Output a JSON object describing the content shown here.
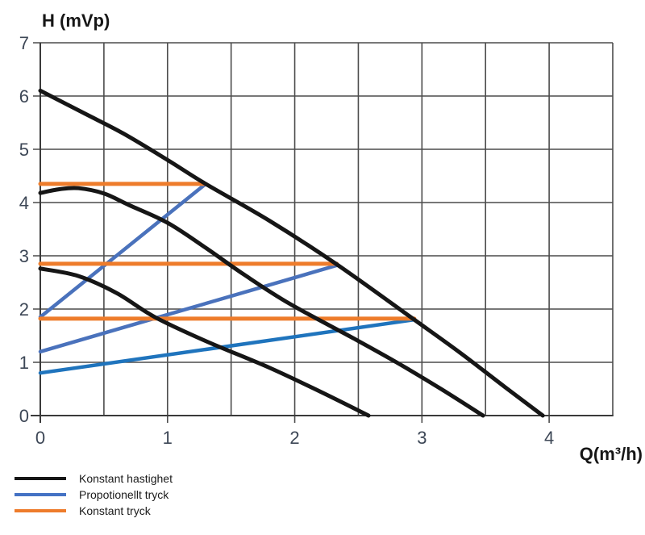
{
  "chart": {
    "y_axis_title": "H (mVp)",
    "x_axis_title": "Q(m³/h)"
  },
  "legend": {
    "items": [
      {
        "label": "Konstant hastighet",
        "color": "#161616"
      },
      {
        "label": "Propotionellt tryck",
        "color": "#4472c4"
      },
      {
        "label": "Konstant tryck",
        "color": "#ee7c2b"
      }
    ]
  },
  "chart_data": {
    "type": "line",
    "title": "",
    "xlabel": "Q(m³/h)",
    "ylabel": "H (mVp)",
    "xlim": [
      0,
      4.5
    ],
    "ylim": [
      0,
      7
    ],
    "x_ticks": [
      0,
      1,
      2,
      3,
      4
    ],
    "y_ticks": [
      0,
      1,
      2,
      3,
      4,
      5,
      6,
      7
    ],
    "x_grid_step": 0.5,
    "y_grid_step": 1,
    "grid": true,
    "legend_position": "bottom-left",
    "series": [
      {
        "name": "propotionellt-tryck-1",
        "legend": "Propotionellt tryck",
        "color": "#4a72bc",
        "width": 4.5,
        "points": [
          [
            0,
            1.85
          ],
          [
            1.3,
            4.35
          ]
        ]
      },
      {
        "name": "propotionellt-tryck-2",
        "legend": "Propotionellt tryck",
        "color": "#4a72bc",
        "width": 4.5,
        "points": [
          [
            0,
            1.2
          ],
          [
            2.33,
            2.82
          ]
        ]
      },
      {
        "name": "propotionellt-tryck-3",
        "legend": "Propotionellt tryck",
        "color": "#1f74bd",
        "width": 4.5,
        "points": [
          [
            0,
            0.8
          ],
          [
            2.94,
            1.8
          ]
        ]
      },
      {
        "name": "konstant-tryck-1",
        "legend": "Konstant tryck",
        "color": "#ee7c2b",
        "width": 5,
        "points": [
          [
            0,
            4.35
          ],
          [
            1.3,
            4.35
          ]
        ]
      },
      {
        "name": "konstant-tryck-2",
        "legend": "Konstant tryck",
        "color": "#ee7c2b",
        "width": 5,
        "points": [
          [
            0,
            2.85
          ],
          [
            2.33,
            2.85
          ]
        ]
      },
      {
        "name": "konstant-tryck-3",
        "legend": "Konstant tryck",
        "color": "#ee7c2b",
        "width": 5,
        "points": [
          [
            0,
            1.82
          ],
          [
            2.94,
            1.82
          ]
        ]
      },
      {
        "name": "konstant-hastighet-max",
        "legend": "Konstant hastighet",
        "color": "#161616",
        "width": 5,
        "points": [
          [
            0,
            6.1
          ],
          [
            0.35,
            5.67
          ],
          [
            0.65,
            5.3
          ],
          [
            1.0,
            4.8
          ],
          [
            1.3,
            4.35
          ],
          [
            1.8,
            3.66
          ],
          [
            2.33,
            2.84
          ],
          [
            2.94,
            1.8
          ],
          [
            3.3,
            1.18
          ],
          [
            3.65,
            0.54
          ],
          [
            3.95,
            0
          ]
        ]
      },
      {
        "name": "konstant-hastighet-mellan",
        "legend": "Konstant hastighet",
        "color": "#161616",
        "width": 5,
        "points": [
          [
            0,
            4.18
          ],
          [
            0.15,
            4.25
          ],
          [
            0.3,
            4.27
          ],
          [
            0.5,
            4.17
          ],
          [
            0.7,
            3.95
          ],
          [
            1.0,
            3.62
          ],
          [
            1.3,
            3.15
          ],
          [
            1.6,
            2.65
          ],
          [
            1.96,
            2.1
          ],
          [
            2.47,
            1.44
          ],
          [
            2.8,
            1.0
          ],
          [
            3.15,
            0.5
          ],
          [
            3.48,
            0
          ]
        ]
      },
      {
        "name": "konstant-hastighet-min",
        "legend": "Konstant hastighet",
        "color": "#161616",
        "width": 5,
        "points": [
          [
            0,
            2.76
          ],
          [
            0.3,
            2.62
          ],
          [
            0.6,
            2.3
          ],
          [
            0.9,
            1.85
          ],
          [
            1.3,
            1.4
          ],
          [
            1.8,
            0.9
          ],
          [
            2.2,
            0.45
          ],
          [
            2.58,
            0
          ]
        ]
      }
    ]
  },
  "colors": {
    "background": "#ffffff",
    "grid": "#4c4c4c",
    "axis": "#3a3a3a",
    "tick_label": "#3d4756",
    "axis_title": "#161616"
  }
}
